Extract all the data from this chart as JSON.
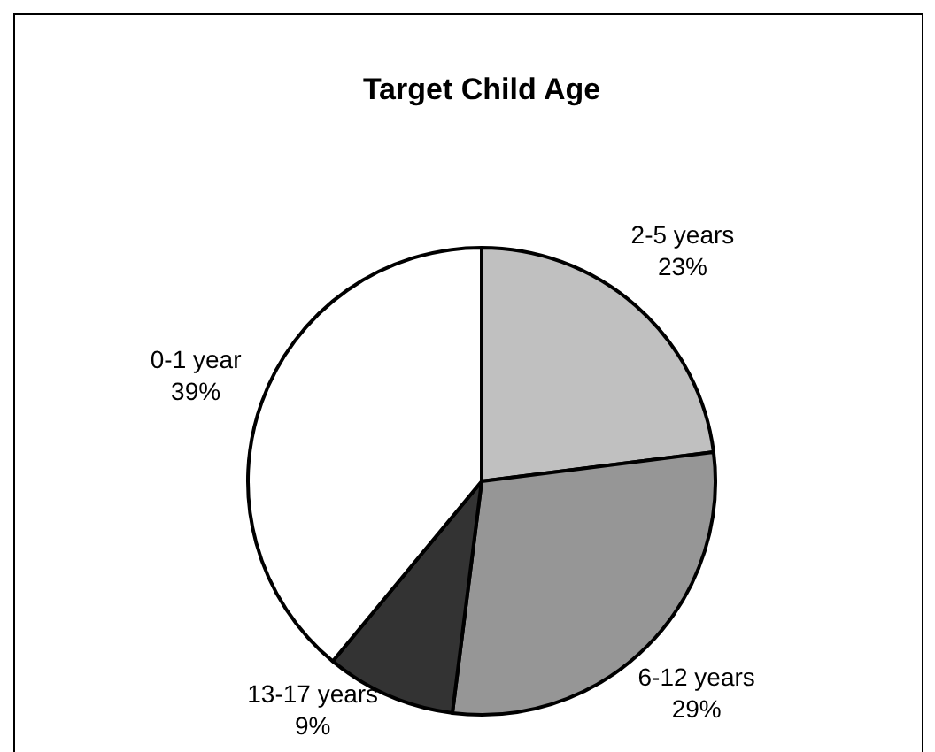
{
  "chart_data": {
    "type": "pie",
    "title": "Target Child Age",
    "categories": [
      "2-5 years",
      "6-12 years",
      "13-17 years",
      "0-1 year"
    ],
    "values": [
      23,
      29,
      9,
      39
    ],
    "value_labels": [
      "23%",
      "29%",
      "9%",
      "39%"
    ],
    "colors": [
      "#c0c0c0",
      "#969696",
      "#333333",
      "#ffffff"
    ],
    "legend": false
  }
}
